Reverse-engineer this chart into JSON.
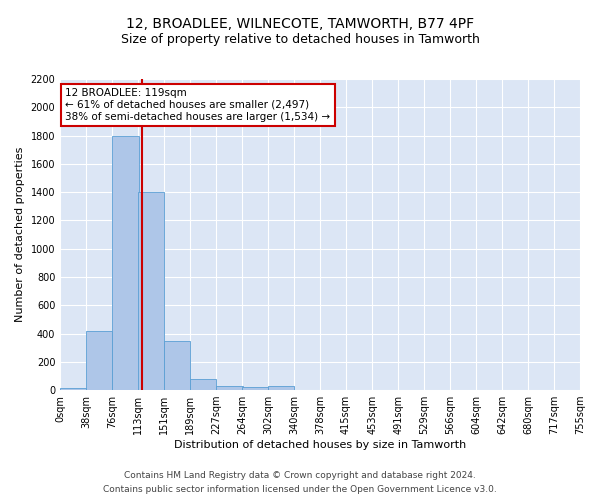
{
  "title1": "12, BROADLEE, WILNECOTE, TAMWORTH, B77 4PF",
  "title2": "Size of property relative to detached houses in Tamworth",
  "xlabel": "Distribution of detached houses by size in Tamworth",
  "ylabel": "Number of detached properties",
  "footer1": "Contains HM Land Registry data © Crown copyright and database right 2024.",
  "footer2": "Contains public sector information licensed under the Open Government Licence v3.0.",
  "bin_labels": [
    "0sqm",
    "38sqm",
    "76sqm",
    "113sqm",
    "151sqm",
    "189sqm",
    "227sqm",
    "264sqm",
    "302sqm",
    "340sqm",
    "378sqm",
    "415sqm",
    "453sqm",
    "491sqm",
    "529sqm",
    "566sqm",
    "604sqm",
    "642sqm",
    "680sqm",
    "717sqm",
    "755sqm"
  ],
  "bar_values": [
    15,
    420,
    1800,
    1400,
    350,
    75,
    30,
    20,
    30,
    0,
    0,
    0,
    0,
    0,
    0,
    0,
    0,
    0,
    0,
    0
  ],
  "bin_edges": [
    0,
    38,
    76,
    113,
    151,
    189,
    227,
    264,
    302,
    340,
    378,
    415,
    453,
    491,
    529,
    566,
    604,
    642,
    680,
    717,
    755
  ],
  "bar_color": "#aec6e8",
  "bar_edge_color": "#5a9fd4",
  "vline_x": 119,
  "vline_color": "#cc0000",
  "annotation_line1": "12 BROADLEE: 119sqm",
  "annotation_line2": "← 61% of detached houses are smaller (2,497)",
  "annotation_line3": "38% of semi-detached houses are larger (1,534) →",
  "annotation_box_color": "#cc0000",
  "ylim": [
    0,
    2200
  ],
  "yticks": [
    0,
    200,
    400,
    600,
    800,
    1000,
    1200,
    1400,
    1600,
    1800,
    2000,
    2200
  ],
  "bg_color": "#dce6f5",
  "grid_color": "#ffffff",
  "title_fontsize": 10,
  "subtitle_fontsize": 9,
  "axis_label_fontsize": 8,
  "tick_fontsize": 7,
  "footer_fontsize": 6.5,
  "annotation_fontsize": 7.5
}
